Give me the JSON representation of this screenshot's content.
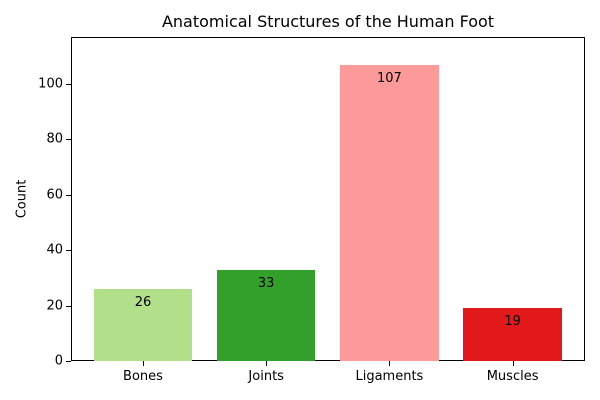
{
  "chart_data": {
    "type": "bar",
    "title": "Anatomical Structures of the Human Foot",
    "xlabel": "",
    "ylabel": "Count",
    "categories": [
      "Bones",
      "Joints",
      "Ligaments",
      "Muscles"
    ],
    "values": [
      26,
      33,
      107,
      19
    ],
    "colors": [
      "#b2df8a",
      "#33a02c",
      "#fb9a99",
      "#e31a1c"
    ],
    "data_labels": [
      "26",
      "33",
      "107",
      "19"
    ],
    "ylim": [
      0,
      117
    ],
    "yticks": [
      0,
      20,
      40,
      60,
      80,
      100
    ],
    "grid": false,
    "legend": null
  }
}
